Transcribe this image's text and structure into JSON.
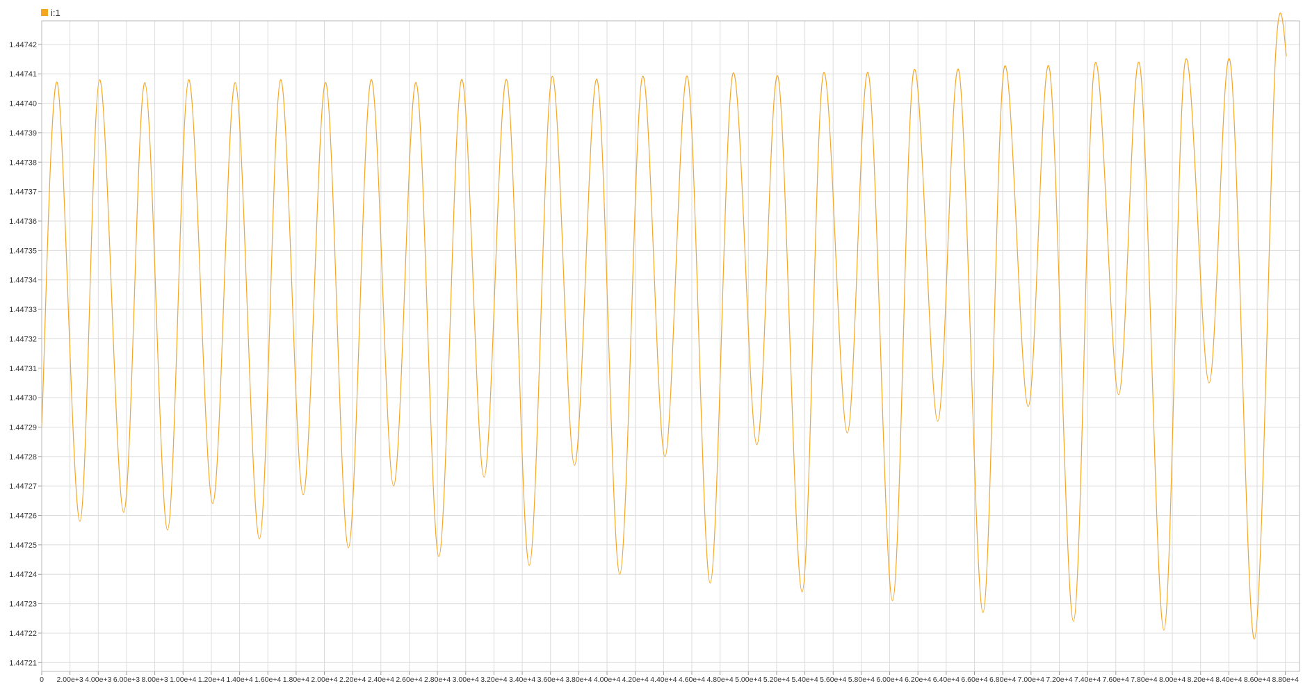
{
  "legend": {
    "label": "i:1",
    "color": "#F5A623"
  },
  "chart_data": {
    "type": "line",
    "title": "",
    "xlabel": "",
    "ylabel": "",
    "grid": true,
    "legend_position": "top-left",
    "xlim": [
      0,
      89000
    ],
    "ylim": [
      1.447207,
      1.447428
    ],
    "x_ticks": [
      {
        "value": 0,
        "label": "0"
      },
      {
        "value": 2000,
        "label": "2.00e+3"
      },
      {
        "value": 4000,
        "label": "4.00e+3"
      },
      {
        "value": 6000,
        "label": "6.00e+3"
      },
      {
        "value": 8000,
        "label": "8.00e+3"
      },
      {
        "value": 10000,
        "label": "1.00e+4"
      },
      {
        "value": 12000,
        "label": "1.20e+4"
      },
      {
        "value": 14000,
        "label": "1.40e+4"
      },
      {
        "value": 16000,
        "label": "1.60e+4"
      },
      {
        "value": 18000,
        "label": "1.80e+4"
      },
      {
        "value": 20000,
        "label": "2.00e+4"
      },
      {
        "value": 22000,
        "label": "2.20e+4"
      },
      {
        "value": 24000,
        "label": "2.40e+4"
      },
      {
        "value": 26000,
        "label": "2.60e+4"
      },
      {
        "value": 28000,
        "label": "2.80e+4"
      },
      {
        "value": 30000,
        "label": "3.00e+4"
      },
      {
        "value": 32000,
        "label": "3.20e+4"
      },
      {
        "value": 34000,
        "label": "3.40e+4"
      },
      {
        "value": 36000,
        "label": "3.60e+4"
      },
      {
        "value": 38000,
        "label": "3.80e+4"
      },
      {
        "value": 40000,
        "label": "4.00e+4"
      },
      {
        "value": 42000,
        "label": "4.20e+4"
      },
      {
        "value": 44000,
        "label": "4.40e+4"
      },
      {
        "value": 46000,
        "label": "4.60e+4"
      },
      {
        "value": 48000,
        "label": "4.80e+4"
      },
      {
        "value": 50000,
        "label": "5.00e+4"
      },
      {
        "value": 52000,
        "label": "5.20e+4"
      },
      {
        "value": 54000,
        "label": "5.40e+4"
      },
      {
        "value": 56000,
        "label": "5.60e+4"
      },
      {
        "value": 58000,
        "label": "5.80e+4"
      },
      {
        "value": 60000,
        "label": "6.00e+4"
      },
      {
        "value": 62000,
        "label": "6.20e+4"
      },
      {
        "value": 64000,
        "label": "6.40e+4"
      },
      {
        "value": 66000,
        "label": "6.60e+4"
      },
      {
        "value": 68000,
        "label": "6.80e+4"
      },
      {
        "value": 70000,
        "label": "7.00e+4"
      },
      {
        "value": 72000,
        "label": "7.20e+4"
      },
      {
        "value": 74000,
        "label": "7.40e+4"
      },
      {
        "value": 76000,
        "label": "7.60e+4"
      },
      {
        "value": 78000,
        "label": "7.80e+4"
      },
      {
        "value": 80000,
        "label": "8.00e+4"
      },
      {
        "value": 82000,
        "label": "8.20e+4"
      },
      {
        "value": 84000,
        "label": "8.40e+4"
      },
      {
        "value": 86000,
        "label": "8.60e+4"
      },
      {
        "value": 88000,
        "label": "8.80e+4"
      }
    ],
    "y_ticks": [
      {
        "value": 1.44721,
        "label": "1.44721"
      },
      {
        "value": 1.44722,
        "label": "1.44722"
      },
      {
        "value": 1.44723,
        "label": "1.44723"
      },
      {
        "value": 1.44724,
        "label": "1.44724"
      },
      {
        "value": 1.44725,
        "label": "1.44725"
      },
      {
        "value": 1.44726,
        "label": "1.44726"
      },
      {
        "value": 1.44727,
        "label": "1.44727"
      },
      {
        "value": 1.44728,
        "label": "1.44728"
      },
      {
        "value": 1.44729,
        "label": "1.44729"
      },
      {
        "value": 1.4473,
        "label": "1.44730"
      },
      {
        "value": 1.44731,
        "label": "1.44731"
      },
      {
        "value": 1.44732,
        "label": "1.44732"
      },
      {
        "value": 1.44733,
        "label": "1.44733"
      },
      {
        "value": 1.44734,
        "label": "1.44734"
      },
      {
        "value": 1.44735,
        "label": "1.44735"
      },
      {
        "value": 1.44736,
        "label": "1.44736"
      },
      {
        "value": 1.44737,
        "label": "1.44737"
      },
      {
        "value": 1.44738,
        "label": "1.44738"
      },
      {
        "value": 1.44739,
        "label": "1.44739"
      },
      {
        "value": 1.4474,
        "label": "1.44740"
      },
      {
        "value": 1.44741,
        "label": "1.44741"
      },
      {
        "value": 1.44742,
        "label": "1.44742"
      }
    ],
    "series": [
      {
        "color": "#F5A623",
        "x": [
          0,
          1100,
          2700,
          4100,
          5800,
          7300,
          8900,
          10400,
          12100,
          13700,
          15400,
          16900,
          18500,
          20100,
          21700,
          23300,
          24900,
          26500,
          28100,
          29700,
          31300,
          32900,
          34500,
          36100,
          37700,
          39300,
          40900,
          42500,
          44100,
          45700,
          47300,
          48900,
          50600,
          52100,
          53800,
          55300,
          57000,
          58500,
          60200,
          61700,
          63400,
          64900,
          66600,
          68100,
          69800,
          71300,
          73000,
          74500,
          76200,
          77700,
          79400,
          80900,
          82600,
          84100,
          85800,
          87300,
          88100
        ],
        "y": [
          1.44729,
          1.447407,
          1.447258,
          1.447408,
          1.447261,
          1.447407,
          1.447255,
          1.447408,
          1.447264,
          1.447407,
          1.447252,
          1.447408,
          1.447267,
          1.447407,
          1.447249,
          1.447408,
          1.44727,
          1.447407,
          1.447246,
          1.447408,
          1.447273,
          1.447408,
          1.447243,
          1.447409,
          1.447277,
          1.447408,
          1.44724,
          1.447409,
          1.44728,
          1.447409,
          1.447237,
          1.44741,
          1.447284,
          1.447409,
          1.447234,
          1.44741,
          1.447288,
          1.44741,
          1.447231,
          1.447411,
          1.447292,
          1.447411,
          1.447227,
          1.447412,
          1.447297,
          1.447412,
          1.447224,
          1.447413,
          1.447301,
          1.447413,
          1.447221,
          1.447414,
          1.447305,
          1.447414,
          1.447218,
          1.447416,
          1.447416
        ]
      }
    ]
  }
}
